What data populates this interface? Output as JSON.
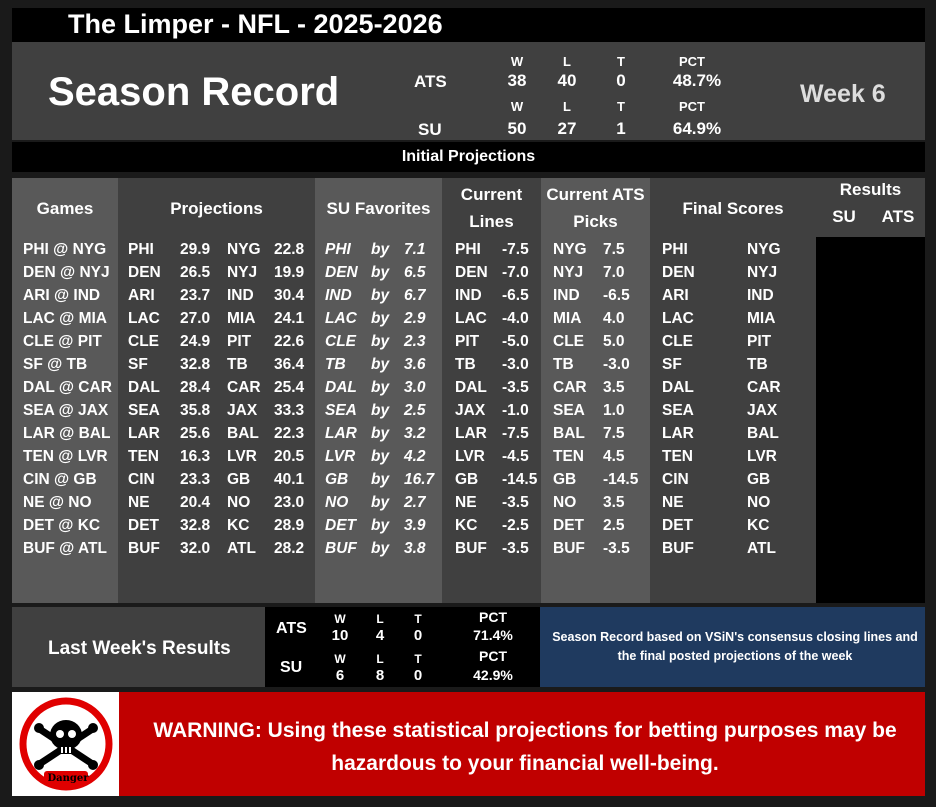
{
  "title": "The Limper - NFL - 2025-2026",
  "season": {
    "heading": "Season Record",
    "week": "Week 6",
    "ats": {
      "label": "ATS",
      "w_h": "W",
      "l_h": "L",
      "t_h": "T",
      "pct_h": "PCT",
      "w": "38",
      "l": "40",
      "t": "0",
      "pct": "48.7%"
    },
    "su": {
      "label": "SU",
      "w_h": "W",
      "l_h": "L",
      "t_h": "T",
      "pct_h": "PCT",
      "w": "50",
      "l": "27",
      "t": "1",
      "pct": "64.9%"
    }
  },
  "initial_projections": "Initial Projections",
  "headers": {
    "games": "Games",
    "projections": "Projections",
    "su_favorites": "SU Favorites",
    "current_lines_1": "Current",
    "current_lines_2": "Lines",
    "current_ats_1": "Current ATS",
    "current_ats_2": "Picks",
    "final_scores": "Final Scores",
    "results": "Results",
    "results_su": "SU",
    "results_ats": "ATS"
  },
  "games": [
    {
      "game": "PHI @ NYG",
      "pa": "PHI",
      "ps": "29.9",
      "ha": "NYG",
      "hs": "22.8",
      "fav": "PHI",
      "by": "by",
      "margin": "7.1",
      "lt": "PHI",
      "lv": "-7.5",
      "pt": "NYG",
      "pv": "7.5",
      "fa": "PHI",
      "fh": "NYG"
    },
    {
      "game": "DEN @ NYJ",
      "pa": "DEN",
      "ps": "26.5",
      "ha": "NYJ",
      "hs": "19.9",
      "fav": "DEN",
      "by": "by",
      "margin": "6.5",
      "lt": "DEN",
      "lv": "-7.0",
      "pt": "NYJ",
      "pv": "7.0",
      "fa": "DEN",
      "fh": "NYJ"
    },
    {
      "game": "ARI @ IND",
      "pa": "ARI",
      "ps": "23.7",
      "ha": "IND",
      "hs": "30.4",
      "fav": "IND",
      "by": "by",
      "margin": "6.7",
      "lt": "IND",
      "lv": "-6.5",
      "pt": "IND",
      "pv": "-6.5",
      "fa": "ARI",
      "fh": "IND"
    },
    {
      "game": "LAC @ MIA",
      "pa": "LAC",
      "ps": "27.0",
      "ha": "MIA",
      "hs": "24.1",
      "fav": "LAC",
      "by": "by",
      "margin": "2.9",
      "lt": "LAC",
      "lv": "-4.0",
      "pt": "MIA",
      "pv": "4.0",
      "fa": "LAC",
      "fh": "MIA"
    },
    {
      "game": "CLE @ PIT",
      "pa": "CLE",
      "ps": "24.9",
      "ha": "PIT",
      "hs": "22.6",
      "fav": "CLE",
      "by": "by",
      "margin": "2.3",
      "lt": "PIT",
      "lv": "-5.0",
      "pt": "CLE",
      "pv": "5.0",
      "fa": "CLE",
      "fh": "PIT"
    },
    {
      "game": "SF @ TB",
      "pa": "SF",
      "ps": "32.8",
      "ha": "TB",
      "hs": "36.4",
      "fav": "TB",
      "by": "by",
      "margin": "3.6",
      "lt": "TB",
      "lv": "-3.0",
      "pt": "TB",
      "pv": "-3.0",
      "fa": "SF",
      "fh": "TB"
    },
    {
      "game": "DAL @ CAR",
      "pa": "DAL",
      "ps": "28.4",
      "ha": "CAR",
      "hs": "25.4",
      "fav": "DAL",
      "by": "by",
      "margin": "3.0",
      "lt": "DAL",
      "lv": "-3.5",
      "pt": "CAR",
      "pv": "3.5",
      "fa": "DAL",
      "fh": "CAR"
    },
    {
      "game": "SEA @ JAX",
      "pa": "SEA",
      "ps": "35.8",
      "ha": "JAX",
      "hs": "33.3",
      "fav": "SEA",
      "by": "by",
      "margin": "2.5",
      "lt": "JAX",
      "lv": "-1.0",
      "pt": "SEA",
      "pv": "1.0",
      "fa": "SEA",
      "fh": "JAX"
    },
    {
      "game": "LAR @ BAL",
      "pa": "LAR",
      "ps": "25.6",
      "ha": "BAL",
      "hs": "22.3",
      "fav": "LAR",
      "by": "by",
      "margin": "3.2",
      "lt": "LAR",
      "lv": "-7.5",
      "pt": "BAL",
      "pv": "7.5",
      "fa": "LAR",
      "fh": "BAL"
    },
    {
      "game": "TEN @ LVR",
      "pa": "TEN",
      "ps": "16.3",
      "ha": "LVR",
      "hs": "20.5",
      "fav": "LVR",
      "by": "by",
      "margin": "4.2",
      "lt": "LVR",
      "lv": "-4.5",
      "pt": "TEN",
      "pv": "4.5",
      "fa": "TEN",
      "fh": "LVR"
    },
    {
      "game": "CIN @ GB",
      "pa": "CIN",
      "ps": "23.3",
      "ha": "GB",
      "hs": "40.1",
      "fav": "GB",
      "by": "by",
      "margin": "16.7",
      "lt": "GB",
      "lv": "-14.5",
      "pt": "GB",
      "pv": "-14.5",
      "fa": "CIN",
      "fh": "GB"
    },
    {
      "game": "NE @ NO",
      "pa": "NE",
      "ps": "20.4",
      "ha": "NO",
      "hs": "23.0",
      "fav": "NO",
      "by": "by",
      "margin": "2.7",
      "lt": "NE",
      "lv": "-3.5",
      "pt": "NO",
      "pv": "3.5",
      "fa": "NE",
      "fh": "NO"
    },
    {
      "game": "DET @ KC",
      "pa": "DET",
      "ps": "32.8",
      "ha": "KC",
      "hs": "28.9",
      "fav": "DET",
      "by": "by",
      "margin": "3.9",
      "lt": "KC",
      "lv": "-2.5",
      "pt": "DET",
      "pv": "2.5",
      "fa": "DET",
      "fh": "KC"
    },
    {
      "game": "BUF @ ATL",
      "pa": "BUF",
      "ps": "32.0",
      "ha": "ATL",
      "hs": "28.2",
      "fav": "BUF",
      "by": "by",
      "margin": "3.8",
      "lt": "BUF",
      "lv": "-3.5",
      "pt": "BUF",
      "pv": "-3.5",
      "fa": "BUF",
      "fh": "ATL"
    }
  ],
  "last_week": {
    "title": "Last Week's Results",
    "ats": {
      "label": "ATS",
      "w_h": "W",
      "l_h": "L",
      "t_h": "T",
      "pct_h": "PCT",
      "w": "10",
      "l": "4",
      "t": "0",
      "pct": "71.4%"
    },
    "su": {
      "label": "SU",
      "w_h": "W",
      "l_h": "L",
      "t_h": "T",
      "pct_h": "PCT",
      "w": "6",
      "l": "8",
      "t": "0",
      "pct": "42.9%"
    }
  },
  "note": "Season Record based on VSiN's consensus closing lines and the final posted projections of the week",
  "warning": {
    "danger_label": "Danger",
    "text": "WARNING: Using these statistical projections for betting purposes may be hazardous to your financial well-being."
  },
  "colors": {
    "panel_gray": "#404040",
    "column_light": "#595959",
    "warning_red": "#c00000",
    "note_blue": "#1f3a5f"
  }
}
